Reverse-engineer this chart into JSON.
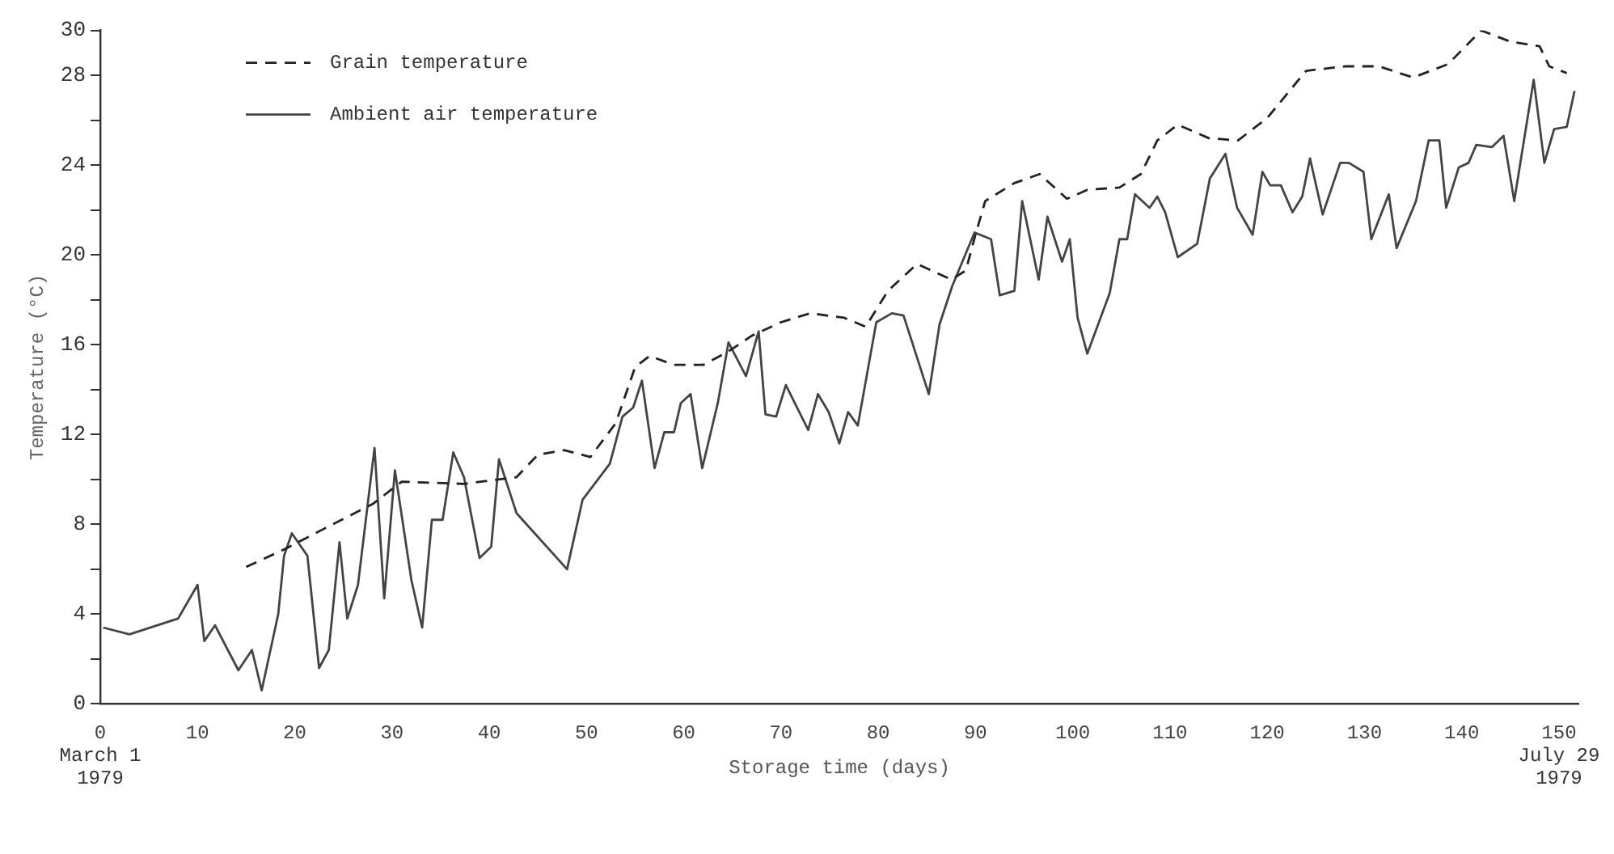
{
  "chart_data": {
    "type": "line",
    "xlabel": "Storage time (days)",
    "ylabel": "Temperature (°C)",
    "xlim": [
      0,
      152
    ],
    "ylim": [
      0,
      30
    ],
    "xticks": [
      0,
      10,
      20,
      30,
      40,
      50,
      60,
      70,
      80,
      90,
      100,
      110,
      120,
      130,
      140,
      150
    ],
    "yticks": [
      0,
      {
        "value": 2,
        "label": null
      },
      4,
      {
        "value": 6,
        "label": null
      },
      8,
      {
        "value": 10,
        "label": null
      },
      12,
      {
        "value": 14,
        "label": null
      },
      16,
      {
        "value": 18,
        "label": null
      },
      20,
      {
        "value": 22,
        "label": null
      },
      24,
      {
        "value": 26,
        "label": null
      },
      28,
      30
    ],
    "grid": false,
    "legend": "top left",
    "marker": "none",
    "annotations": [
      "March 1\n1979",
      "July 29\n1979"
    ],
    "series": [
      {
        "name": "Grain temperature",
        "color": "#222222",
        "line_style": "dashed",
        "x": [
          15,
          19,
          23,
          28,
          31,
          37.4,
          42.8,
          45,
          47.7,
          50.4,
          53,
          55,
          56.5,
          59,
          62,
          64.6,
          67,
          70,
          73,
          76.5,
          78.7,
          81,
          84,
          87.5,
          89,
          90,
          91,
          94,
          96.6,
          99.4,
          101.5,
          104.8,
          107,
          108.7,
          110.8,
          114,
          117,
          120,
          124,
          128,
          131.5,
          135,
          138.6,
          142,
          145,
          148,
          149,
          150.8
        ],
        "values": [
          6.1,
          6.9,
          7.8,
          8.9,
          9.9,
          9.8,
          10.1,
          11.1,
          11.3,
          11,
          12.5,
          15,
          15.5,
          15.1,
          15.1,
          15.7,
          16.4,
          17,
          17.4,
          17.2,
          16.8,
          18.4,
          19.6,
          18.9,
          19.3,
          20.9,
          22.4,
          23.2,
          23.6,
          22.5,
          22.9,
          23,
          23.6,
          25.1,
          25.8,
          25.2,
          25.1,
          26.1,
          28.2,
          28.4,
          28.4,
          27.9,
          28.5,
          30,
          29.5,
          29.3,
          28.4,
          28.1
        ]
      },
      {
        "name": "Ambient air temperature",
        "color": "#444444",
        "line_style": "solid",
        "x": [
          0.3,
          3,
          8,
          10,
          10.7,
          11.8,
          14.2,
          15.6,
          16.6,
          18.3,
          18.9,
          19.7,
          21.3,
          22.5,
          23.5,
          24.6,
          25.4,
          26.5,
          28.2,
          29.2,
          30.3,
          32,
          33.1,
          34.1,
          35.2,
          36.3,
          37.4,
          39,
          40.2,
          41,
          42.8,
          48,
          49.6,
          52.4,
          53.7,
          54.8,
          55.7,
          57,
          58,
          59,
          59.7,
          60.7,
          61.9,
          63.5,
          64.6,
          66.4,
          67.7,
          68.4,
          69.5,
          70.5,
          72.8,
          73.8,
          74.9,
          76,
          76.9,
          77.9,
          79.8,
          81.4,
          82.6,
          85.2,
          86.3,
          87.6,
          89.9,
          91.6,
          92.5,
          94,
          94.8,
          96.5,
          97.4,
          98.9,
          99.7,
          100.5,
          101.5,
          103.8,
          104.8,
          105.6,
          106.4,
          107.9,
          108.7,
          109.5,
          110.8,
          112.8,
          114.1,
          115.7,
          116.9,
          118.5,
          119.5,
          120.3,
          121.4,
          122.6,
          123.6,
          124.4,
          125.7,
          127.5,
          128.4,
          129.9,
          130.7,
          132.5,
          133.3,
          135.3,
          136.6,
          137.7,
          138.4,
          139.7,
          140.7,
          141.5,
          143.1,
          144.3,
          145.4,
          147.4,
          148.5,
          149.5,
          150.8,
          151.6
        ],
        "values": [
          3.4,
          3.1,
          3.8,
          5.3,
          2.8,
          3.5,
          1.5,
          2.4,
          0.6,
          4,
          6.6,
          7.6,
          6.6,
          1.6,
          2.4,
          7.2,
          3.8,
          5.3,
          11.4,
          4.7,
          10.4,
          5.5,
          3.4,
          8.2,
          8.2,
          11.2,
          10.1,
          6.5,
          7,
          10.9,
          8.5,
          6,
          9.1,
          10.7,
          12.8,
          13.2,
          14.4,
          10.5,
          12.1,
          12.1,
          13.4,
          13.8,
          10.5,
          13.4,
          16.1,
          14.6,
          16.6,
          12.9,
          12.8,
          14.2,
          12.2,
          13.8,
          13,
          11.6,
          13,
          12.4,
          17,
          17.4,
          17.3,
          13.8,
          16.9,
          18.6,
          21,
          20.7,
          18.2,
          18.4,
          22.4,
          18.9,
          21.7,
          19.7,
          20.7,
          17.2,
          15.6,
          18.3,
          20.7,
          20.7,
          22.7,
          22.1,
          22.6,
          21.9,
          19.9,
          20.5,
          23.4,
          24.5,
          22.1,
          20.9,
          23.7,
          23.1,
          23.1,
          21.9,
          22.6,
          24.3,
          21.8,
          24.1,
          24.1,
          23.7,
          20.7,
          22.7,
          20.3,
          22.4,
          25.1,
          25.1,
          22.1,
          23.9,
          24.1,
          24.9,
          24.8,
          25.3,
          22.4,
          27.8,
          24.1,
          25.6,
          25.7,
          27.3
        ]
      }
    ]
  }
}
